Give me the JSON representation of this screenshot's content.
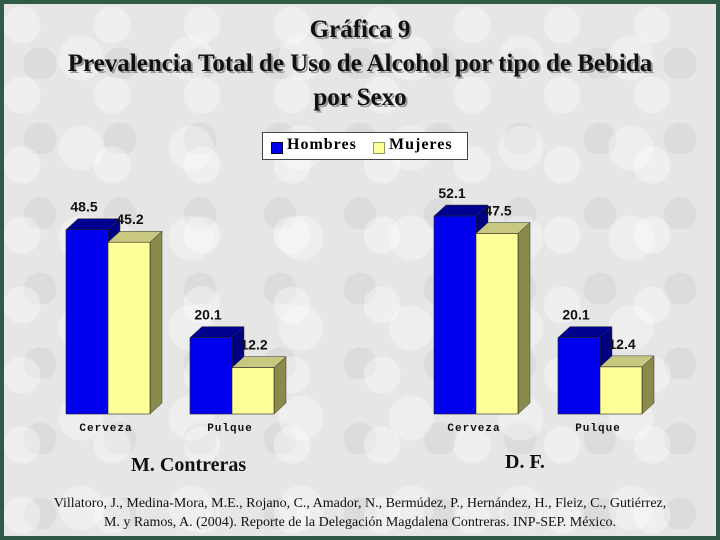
{
  "title": {
    "line1": "Gráfica 9",
    "line2": "Prevalencia Total de Uso de Alcohol por tipo de Bebida",
    "line3": "por Sexo"
  },
  "legend": {
    "series1": "Hombres",
    "series2": "Mujeres"
  },
  "colors": {
    "hombres": "#0000ee",
    "mujeres": "#ffff99"
  },
  "source": {
    "line1": "Villatoro, J., Medina-Mora, M.E., Rojano, C., Amador, N., Bermúdez, P., Hernández, H., Fleiz, C., Gutiérrez,",
    "line2": "M. y Ramos, A. (2004). Reporte de la Delegación Magdalena Contreras. INP-SEP. México."
  },
  "chart_data": [
    {
      "type": "bar",
      "title": "M. Contreras",
      "categories": [
        "Cerveza",
        "Pulque"
      ],
      "series": [
        {
          "name": "Hombres",
          "values": [
            48.5,
            20.1
          ]
        },
        {
          "name": "Mujeres",
          "values": [
            45.2,
            12.2
          ]
        }
      ],
      "ylim": [
        0,
        55
      ],
      "grid": false,
      "legend": "top-center"
    },
    {
      "type": "bar",
      "title": "D. F.",
      "categories": [
        "Cerveza",
        "Pulque"
      ],
      "series": [
        {
          "name": "Hombres",
          "values": [
            52.1,
            20.1
          ]
        },
        {
          "name": "Mujeres",
          "values": [
            47.5,
            12.4
          ]
        }
      ],
      "ylim": [
        0,
        55
      ],
      "grid": false,
      "legend": "top-center"
    }
  ]
}
